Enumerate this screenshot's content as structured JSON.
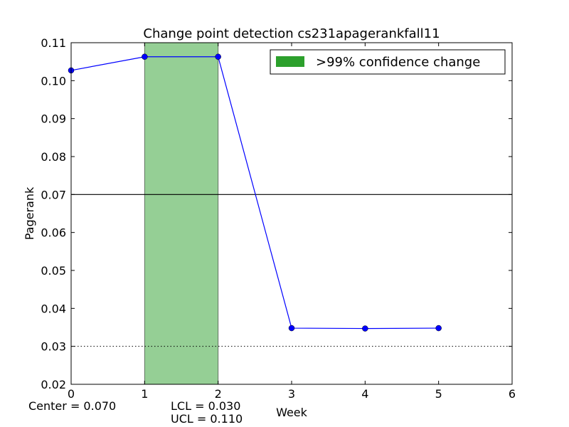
{
  "chart_data": {
    "type": "line",
    "title": "Change point detection cs231apagerankfall11",
    "xlabel": "Week",
    "ylabel": "Pagerank",
    "xlim": [
      0,
      6
    ],
    "ylim": [
      0.02,
      0.11
    ],
    "xticks": [
      0,
      1,
      2,
      3,
      4,
      5,
      6
    ],
    "xtick_labels": [
      "0",
      "1",
      "2",
      "3",
      "4",
      "5",
      "6"
    ],
    "yticks": [
      0.02,
      0.03,
      0.04,
      0.05,
      0.06,
      0.07,
      0.08,
      0.09,
      0.1,
      0.11
    ],
    "ytick_labels": [
      "0.02",
      "0.03",
      "0.04",
      "0.05",
      "0.06",
      "0.07",
      "0.08",
      "0.09",
      "0.10",
      "0.11"
    ],
    "grid": false,
    "series": [
      {
        "x": [
          0,
          1,
          2,
          3,
          4,
          5
        ],
        "values": [
          0.1027,
          0.1063,
          0.1063,
          0.0348,
          0.0347,
          0.0348
        ],
        "color": "#0000ff"
      }
    ],
    "center_line": 0.07,
    "lcl_line": 0.03,
    "shaded_region": {
      "x": [
        1,
        2
      ],
      "color": "#2ca02c",
      "label": ">99% confidence change"
    },
    "legend": {
      "position": "top-right",
      "entries": [
        ">99% confidence change"
      ]
    }
  },
  "stats": {
    "center": "Center = 0.070",
    "lcl": "LCL = 0.030",
    "ucl": "UCL = 0.110"
  }
}
